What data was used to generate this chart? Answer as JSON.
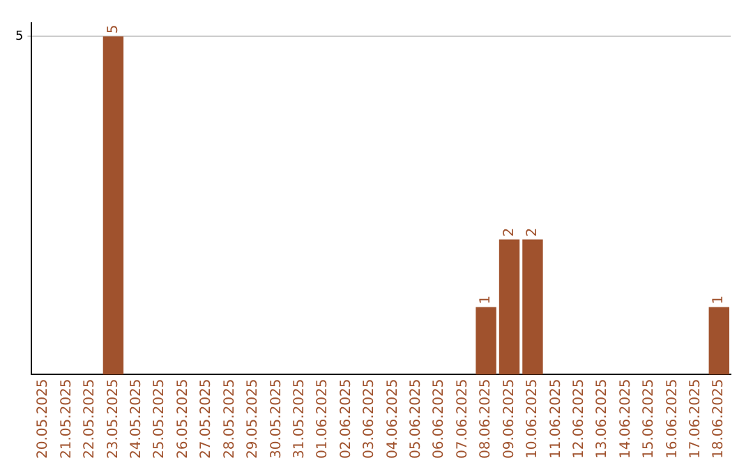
{
  "chart_data": {
    "type": "bar",
    "categories": [
      "20.05.2025",
      "21.05.2025",
      "22.05.2025",
      "23.05.2025",
      "24.05.2025",
      "25.05.2025",
      "26.05.2025",
      "27.05.2025",
      "28.05.2025",
      "29.05.2025",
      "30.05.2025",
      "31.05.2025",
      "01.06.2025",
      "02.06.2025",
      "03.06.2025",
      "04.06.2025",
      "05.06.2025",
      "06.06.2025",
      "07.06.2025",
      "08.06.2025",
      "09.06.2025",
      "10.06.2025",
      "11.06.2025",
      "12.06.2025",
      "13.06.2025",
      "14.06.2025",
      "15.06.2025",
      "16.06.2025",
      "17.06.2025",
      "18.06.2025"
    ],
    "values": [
      0,
      0,
      0,
      5,
      0,
      0,
      0,
      0,
      0,
      0,
      0,
      0,
      0,
      0,
      0,
      0,
      0,
      0,
      0,
      1,
      2,
      2,
      0,
      0,
      0,
      0,
      0,
      0,
      0,
      1
    ],
    "value_labels": [
      null,
      null,
      null,
      "5",
      null,
      null,
      null,
      null,
      null,
      null,
      null,
      null,
      null,
      null,
      null,
      null,
      null,
      null,
      null,
      "1",
      "2",
      "2",
      null,
      null,
      null,
      null,
      null,
      null,
      null,
      "1"
    ],
    "color": "#a0522d",
    "ylim": [
      0,
      5.2
    ],
    "yticks": [
      5
    ],
    "grid": "y",
    "legend": false
  }
}
